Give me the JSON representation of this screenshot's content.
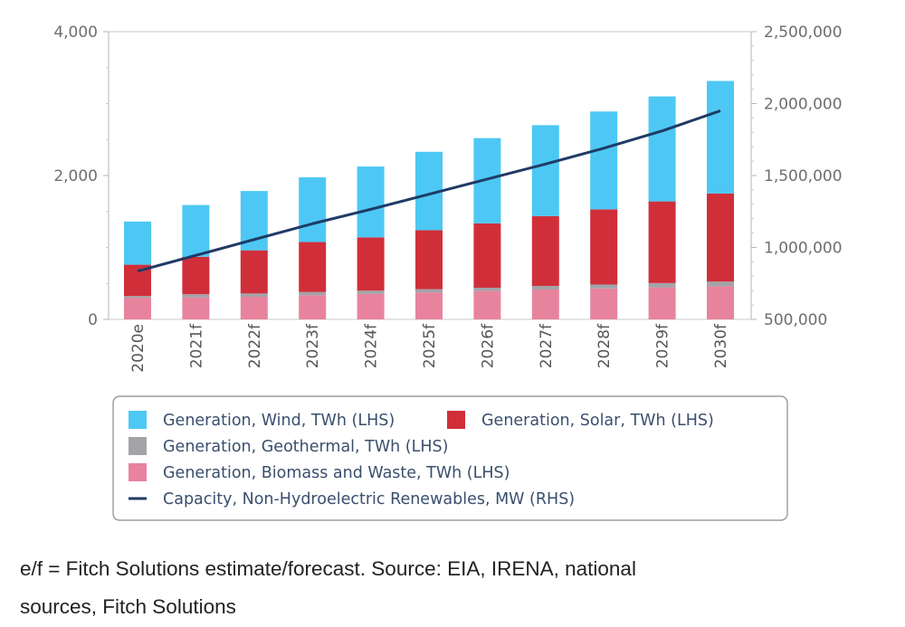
{
  "chart_data": {
    "type": "bar",
    "stacked": true,
    "categories": [
      "2020e",
      "2021f",
      "2022f",
      "2023f",
      "2024f",
      "2025f",
      "2026f",
      "2027f",
      "2028f",
      "2029f",
      "2030f"
    ],
    "y_left": {
      "ylim": [
        0,
        4000
      ],
      "ticks": [
        "0",
        "2,000",
        "4,000"
      ],
      "tick_values": [
        0,
        2000,
        4000
      ]
    },
    "y_right": {
      "ylim": [
        500000,
        2500000
      ],
      "ticks": [
        "500,000",
        "1,000,000",
        "1,500,000",
        "2,000,000",
        "2,500,000"
      ],
      "tick_values": [
        500000,
        1000000,
        1500000,
        2000000,
        2500000
      ]
    },
    "series": [
      {
        "name": "Generation, Biomass and Waste, TWh (LHS)",
        "type": "bar",
        "axis": "left",
        "color": "#e8839e",
        "values": [
          300,
          305,
          315,
          335,
          355,
          375,
          395,
          415,
          430,
          445,
          460
        ]
      },
      {
        "name": "Generation, Geothermal, TWh (LHS)",
        "type": "bar",
        "axis": "left",
        "color": "#a3a3a8",
        "values": [
          25,
          45,
          45,
          45,
          45,
          45,
          45,
          50,
          55,
          60,
          65
        ]
      },
      {
        "name": "Generation, Solar, TWh (LHS)",
        "type": "bar",
        "axis": "left",
        "color": "#d02f3a",
        "values": [
          435,
          520,
          600,
          695,
          740,
          820,
          895,
          970,
          1045,
          1135,
          1225
        ]
      },
      {
        "name": "Generation, Wind, TWh (LHS)",
        "type": "bar",
        "axis": "left",
        "color": "#4dc8f4",
        "values": [
          600,
          720,
          825,
          900,
          985,
          1090,
          1185,
          1265,
          1360,
          1460,
          1565
        ]
      },
      {
        "name": "Capacity, Non-Hydroelectric Renewables, MW (RHS)",
        "type": "line",
        "axis": "right",
        "color": "#1f3b66",
        "values": [
          835000,
          945000,
          1055000,
          1165000,
          1265000,
          1370000,
          1475000,
          1580000,
          1690000,
          1810000,
          1950000
        ]
      }
    ],
    "legend": {
      "placement": "bottom",
      "rows": [
        [
          "Generation, Wind, TWh (LHS)",
          "Generation, Solar, TWh (LHS)"
        ],
        [
          "Generation, Geothermal, TWh (LHS)"
        ],
        [
          "Generation, Biomass and Waste, TWh (LHS)"
        ],
        [
          "Capacity, Non-Hydroelectric Renewables, MW (RHS)"
        ]
      ]
    },
    "grid": false
  },
  "footnote": {
    "line1": "e/f = Fitch Solutions estimate/forecast. Source: EIA, IRENA, national",
    "line2": "sources, Fitch Solutions"
  }
}
